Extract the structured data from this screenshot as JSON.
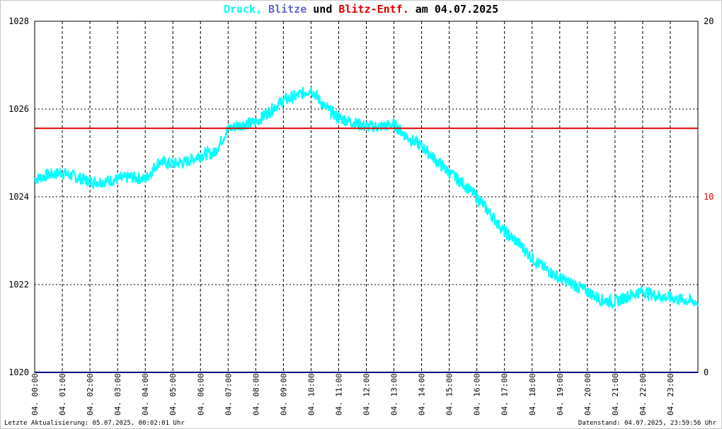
{
  "title": {
    "druck": "Druck,",
    "blitze": "Blitze",
    "und": "und",
    "blitz_entf": "Blitz-Entf.",
    "am": "am",
    "date": "04.07.2025"
  },
  "colors": {
    "druck": "#00ffff",
    "blitze": "#6666cc",
    "blitz_entf": "#dd0000",
    "baseline": "#000080",
    "text": "#000000",
    "grid": "#000000"
  },
  "footer": {
    "left": "Letzte Aktualisierung: 05.07.2025, 00:02:01 Uhr",
    "right": "Datenstand: 04.07.2025, 23:59:56 Uhr"
  },
  "chart_data": {
    "type": "line",
    "x_unit": "hour",
    "x_range": [
      0,
      24
    ],
    "y_left": {
      "ticks": [
        1020,
        1022,
        1024,
        1026,
        1028
      ],
      "range": [
        1020,
        1028
      ]
    },
    "y_right": {
      "ticks": [
        0,
        10,
        20
      ],
      "range": [
        0,
        20
      ]
    },
    "x_ticks": [
      "04. 00:00",
      "04. 01:00",
      "04. 02:00",
      "04. 03:00",
      "04. 04:00",
      "04. 05:00",
      "04. 06:00",
      "04. 07:00",
      "04. 08:00",
      "04. 09:00",
      "04. 10:00",
      "04. 11:00",
      "04. 12:00",
      "04. 13:00",
      "04. 14:00",
      "04. 15:00",
      "04. 16:00",
      "04. 17:00",
      "04. 18:00",
      "04. 19:00",
      "04. 20:00",
      "04. 21:00",
      "04. 22:00",
      "04. 23:00"
    ],
    "series": [
      {
        "name": "Druck",
        "axis": "left",
        "x": [
          0,
          0.5,
          1,
          1.5,
          2,
          2.5,
          3,
          3.5,
          4,
          4.5,
          5,
          5.5,
          6,
          6.5,
          7,
          7.5,
          8,
          8.5,
          9,
          9.5,
          10,
          10.5,
          11,
          11.5,
          12,
          12.5,
          13,
          13.5,
          14,
          14.5,
          15,
          15.5,
          16,
          16.5,
          17,
          17.5,
          18,
          18.5,
          19,
          19.5,
          20,
          20.5,
          21,
          21.5,
          22,
          22.5,
          23,
          23.5,
          24
        ],
        "values": [
          1024.4,
          1024.5,
          1024.55,
          1024.45,
          1024.35,
          1024.35,
          1024.4,
          1024.45,
          1024.4,
          1024.8,
          1024.75,
          1024.8,
          1024.95,
          1025.0,
          1025.55,
          1025.65,
          1025.7,
          1025.95,
          1026.2,
          1026.3,
          1026.45,
          1026.05,
          1025.8,
          1025.7,
          1025.6,
          1025.6,
          1025.65,
          1025.35,
          1025.15,
          1024.85,
          1024.55,
          1024.3,
          1024.0,
          1023.6,
          1023.2,
          1022.95,
          1022.6,
          1022.35,
          1022.15,
          1022.0,
          1021.85,
          1021.65,
          1021.6,
          1021.75,
          1021.85,
          1021.75,
          1021.7,
          1021.65,
          1021.6
        ]
      },
      {
        "name": "Blitz-Entf.",
        "axis": "right",
        "x": [
          0,
          24
        ],
        "values": [
          13.9,
          13.9
        ]
      },
      {
        "name": "Blitze",
        "axis": "right",
        "x": [
          0,
          24
        ],
        "values": [
          0,
          0
        ]
      }
    ]
  }
}
